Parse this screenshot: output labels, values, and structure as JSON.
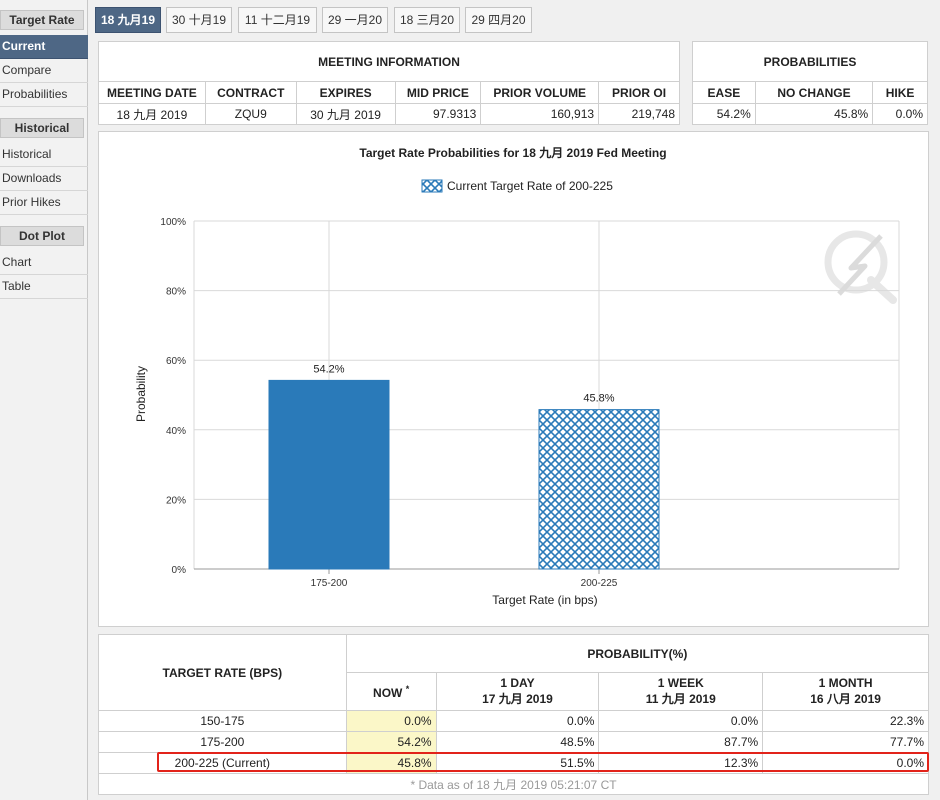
{
  "sidebar": {
    "sections": [
      {
        "title": "Target Rate",
        "items": [
          "Current",
          "Compare",
          "Probabilities"
        ]
      },
      {
        "title": "Historical",
        "items": [
          "Historical",
          "Downloads",
          "Prior Hikes"
        ]
      },
      {
        "title": "Dot Plot",
        "items": [
          "Chart",
          "Table"
        ]
      }
    ],
    "active_item": "Current"
  },
  "tabs": [
    "18 九月19",
    "30 十月19",
    "11 十二月19",
    "29 一月20",
    "18 三月20",
    "29 四月20"
  ],
  "meeting_info": {
    "caption": "MEETING INFORMATION",
    "headers": [
      "MEETING DATE",
      "CONTRACT",
      "EXPIRES",
      "MID PRICE",
      "PRIOR VOLUME",
      "PRIOR OI"
    ],
    "values": [
      "18 九月 2019",
      "ZQU9",
      "30 九月 2019",
      "97.9313",
      "160,913",
      "219,748"
    ]
  },
  "probabilities": {
    "caption": "PROBABILITIES",
    "headers": [
      "EASE",
      "NO CHANGE",
      "HIKE"
    ],
    "values": [
      "54.2%",
      "45.8%",
      "0.0%"
    ]
  },
  "chart_data": {
    "type": "bar",
    "title": "Target Rate Probabilities for 18 九月 2019  Fed Meeting",
    "legend": "Current Target Rate of 200-225",
    "legend_position": "top-center",
    "xlabel": "Target Rate (in bps)",
    "ylabel": "Probability",
    "categories": [
      "175-200",
      "200-225"
    ],
    "values": [
      54.2,
      45.8
    ],
    "data_labels": [
      "54.2%",
      "45.8%"
    ],
    "current_category": "200-225",
    "ylim": [
      0,
      100
    ],
    "yticks": [
      "0%",
      "20%",
      "40%",
      "60%",
      "80%",
      "100%"
    ],
    "grid": true,
    "colors": {
      "bar": "#2a7ab9",
      "current_pattern": "#2a7ab9",
      "grid": "#d9d9d9"
    }
  },
  "rate_table": {
    "header_left": "TARGET RATE (BPS)",
    "header_right": "PROBABILITY(%)",
    "now_label": "NOW",
    "now_mark": "*",
    "col_1_line1": "1 DAY",
    "col_1_line2": "17 九月 2019",
    "col_2_line1": "1 WEEK",
    "col_2_line2": "11 九月 2019",
    "col_3_line1": "1 MONTH",
    "col_3_line2": "16 八月 2019",
    "rows": [
      {
        "rate": "150-175",
        "now": "0.0%",
        "day": "0.0%",
        "week": "0.0%",
        "month": "22.3%"
      },
      {
        "rate": "175-200",
        "now": "54.2%",
        "day": "48.5%",
        "week": "87.7%",
        "month": "77.7%"
      },
      {
        "rate": "200-225 (Current)",
        "now": "45.8%",
        "day": "51.5%",
        "week": "12.3%",
        "month": "0.0%"
      }
    ],
    "footnote": "* Data as of 18 九月 2019 05:21:07 CT",
    "highlight_color": "#e2231a"
  }
}
